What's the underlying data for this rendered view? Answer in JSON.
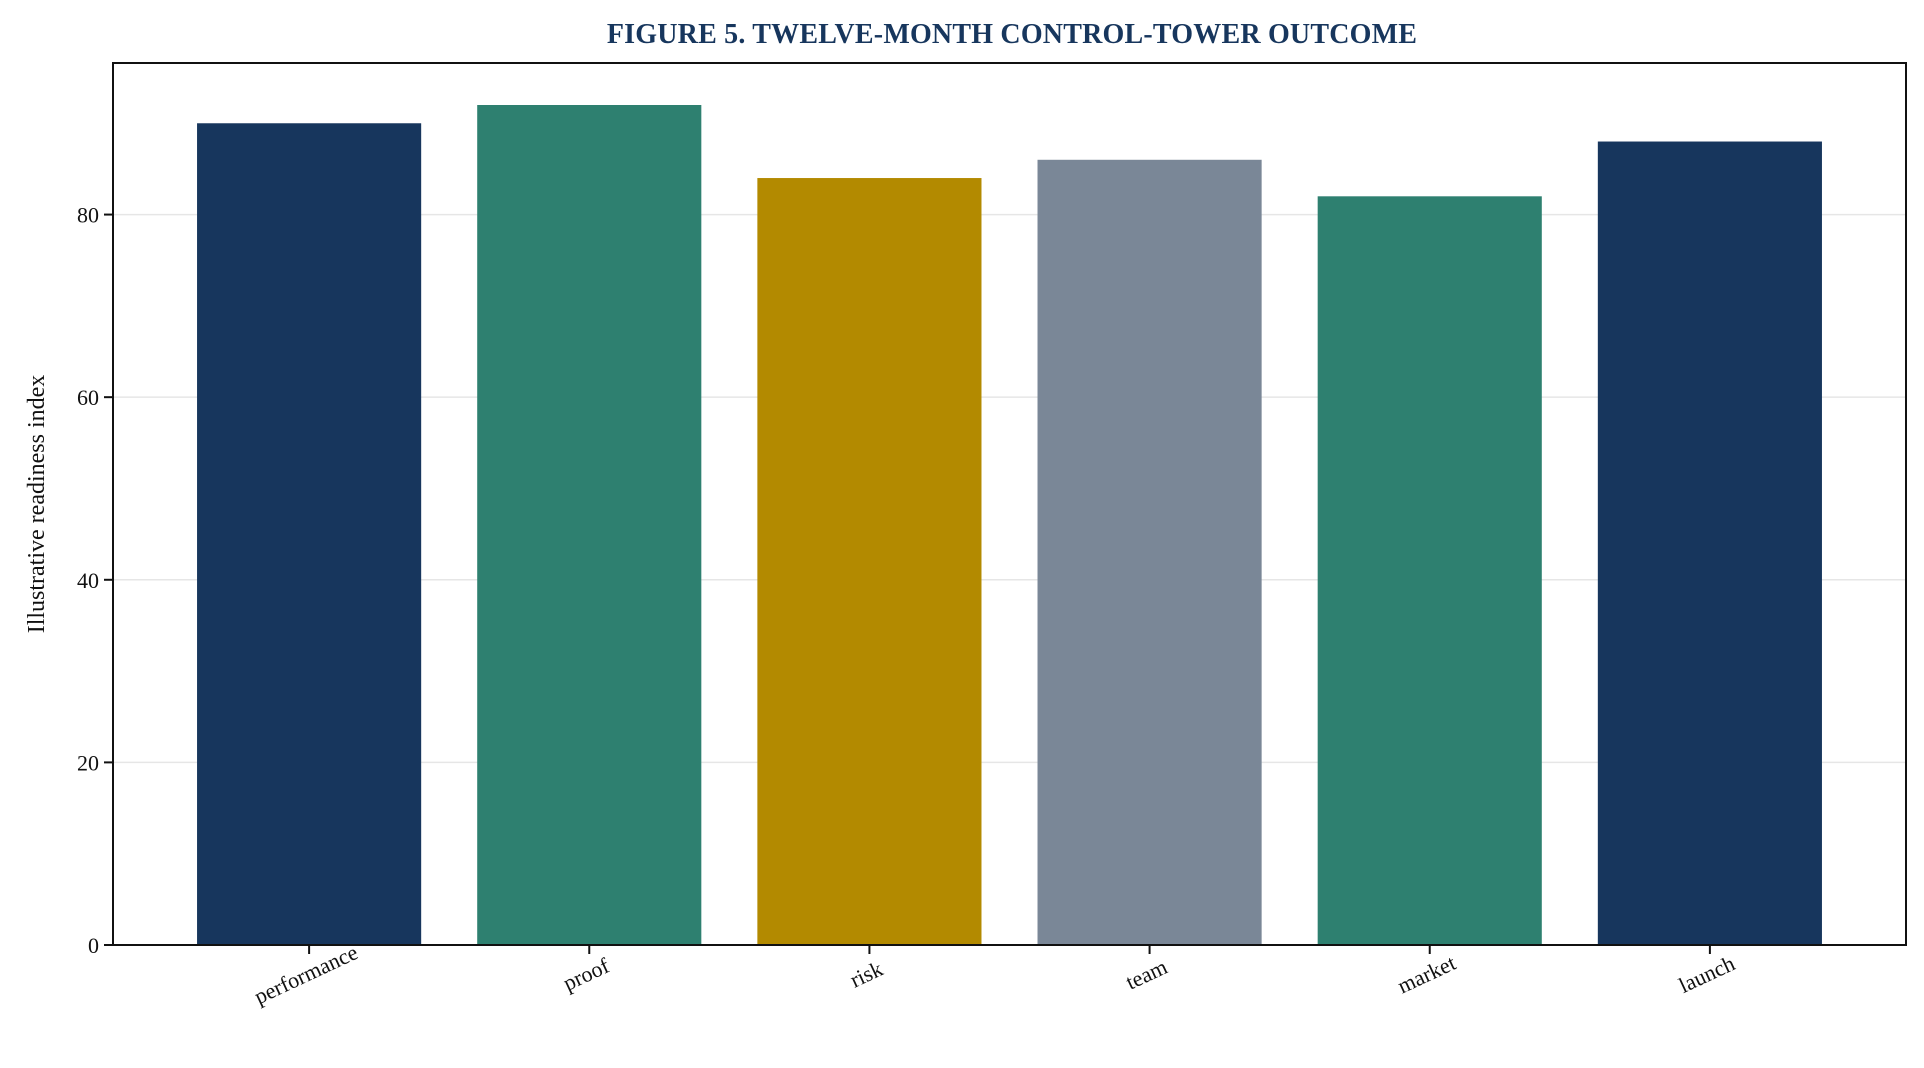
{
  "chart_data": {
    "type": "bar",
    "title": "FIGURE 5. TWELVE-MONTH CONTROL-TOWER OUTCOME",
    "xlabel": "",
    "ylabel": "Illustrative readiness index",
    "categories": [
      "performance",
      "proof",
      "risk",
      "team",
      "market",
      "launch"
    ],
    "values": [
      90,
      92,
      84,
      86,
      82,
      88
    ],
    "bar_colors": [
      "#17365d",
      "#2e8070",
      "#b38a00",
      "#7a8797",
      "#2e8070",
      "#17365d"
    ],
    "ylim": [
      0,
      96.6
    ],
    "yticks": [
      0,
      20,
      40,
      60,
      80
    ],
    "grid": "y",
    "legend": "none"
  }
}
